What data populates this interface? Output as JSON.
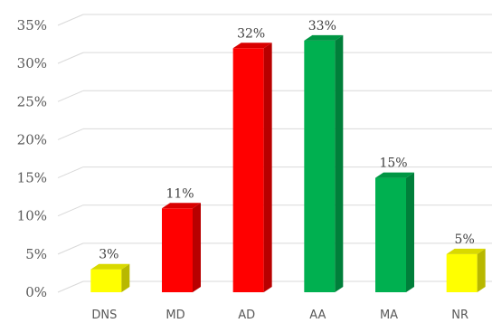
{
  "chart_data": {
    "type": "bar",
    "title": "",
    "xlabel": "",
    "ylabel": "",
    "categories": [
      "DNS",
      "MD",
      "AD",
      "AA",
      "MA",
      "NR"
    ],
    "values": [
      3,
      11,
      32,
      33,
      15,
      5
    ],
    "value_labels": [
      "3%",
      "11%",
      "32%",
      "33%",
      "15%",
      "5%"
    ],
    "colors": [
      "#ffff00",
      "#ff0000",
      "#ff0000",
      "#00b050",
      "#00b050",
      "#ffff00"
    ],
    "y_ticks": [
      {
        "value": 0,
        "label": "0%"
      },
      {
        "value": 5,
        "label": "5%"
      },
      {
        "value": 10,
        "label": "10%"
      },
      {
        "value": 15,
        "label": "15%"
      },
      {
        "value": 20,
        "label": "20%"
      },
      {
        "value": 25,
        "label": "25%"
      },
      {
        "value": 30,
        "label": "30%"
      },
      {
        "value": 35,
        "label": "35%"
      }
    ],
    "ylim": [
      0,
      35
    ],
    "grid": true,
    "legend": "none",
    "style": "3d-columns"
  }
}
